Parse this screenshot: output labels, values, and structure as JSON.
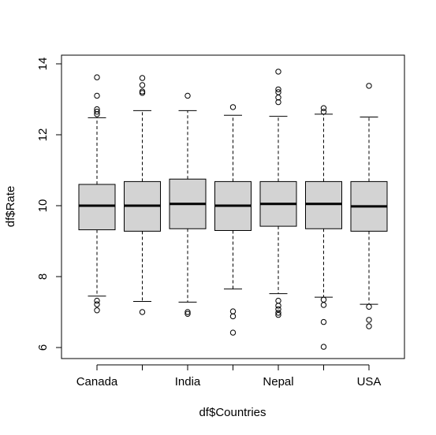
{
  "chart_data": {
    "type": "boxplot",
    "xlabel": "df$Countries",
    "ylabel": "df$Rate",
    "ylim": [
      5.75,
      14.25
    ],
    "yticks": [
      6,
      8,
      10,
      12,
      14
    ],
    "grid": false,
    "legend": "none",
    "categories": [
      "Canada",
      "",
      "India",
      "",
      "Nepal",
      "",
      "USA"
    ],
    "tick_labels": [
      "Canada",
      "India",
      "Nepal",
      "USA"
    ],
    "boxes": [
      {
        "label": "Canada",
        "whisker_low": 7.45,
        "q1": 9.32,
        "median": 10.0,
        "q3": 10.6,
        "whisker_high": 12.48,
        "outliers": [
          7.05,
          7.22,
          7.32,
          12.58,
          12.65,
          12.72,
          13.1,
          13.62
        ]
      },
      {
        "label": "",
        "whisker_low": 7.3,
        "q1": 9.28,
        "median": 10.0,
        "q3": 10.68,
        "whisker_high": 12.68,
        "outliers": [
          7.0,
          13.18,
          13.22,
          13.4,
          13.6
        ]
      },
      {
        "label": "India",
        "whisker_low": 7.28,
        "q1": 9.35,
        "median": 10.05,
        "q3": 10.75,
        "whisker_high": 12.68,
        "outliers": [
          6.95,
          7.0,
          13.1
        ]
      },
      {
        "label": "",
        "whisker_low": 7.65,
        "q1": 9.3,
        "median": 10.0,
        "q3": 10.68,
        "whisker_high": 12.55,
        "outliers": [
          6.42,
          6.88,
          7.02,
          12.78
        ]
      },
      {
        "label": "Nepal",
        "whisker_low": 7.52,
        "q1": 9.42,
        "median": 10.05,
        "q3": 10.68,
        "whisker_high": 12.52,
        "outliers": [
          6.92,
          6.98,
          7.08,
          7.18,
          7.32,
          12.92,
          13.05,
          13.2,
          13.28,
          13.78
        ]
      },
      {
        "label": "",
        "whisker_low": 7.42,
        "q1": 9.35,
        "median": 10.05,
        "q3": 10.68,
        "whisker_high": 12.58,
        "outliers": [
          6.02,
          6.72,
          7.2,
          7.35,
          12.65,
          12.75
        ]
      },
      {
        "label": "USA",
        "whisker_low": 7.22,
        "q1": 9.28,
        "median": 9.98,
        "q3": 10.68,
        "whisker_high": 12.5,
        "outliers": [
          6.6,
          6.78,
          7.15,
          13.38
        ]
      }
    ],
    "box_fill": "#d3d3d3",
    "line_color": "#000000"
  }
}
